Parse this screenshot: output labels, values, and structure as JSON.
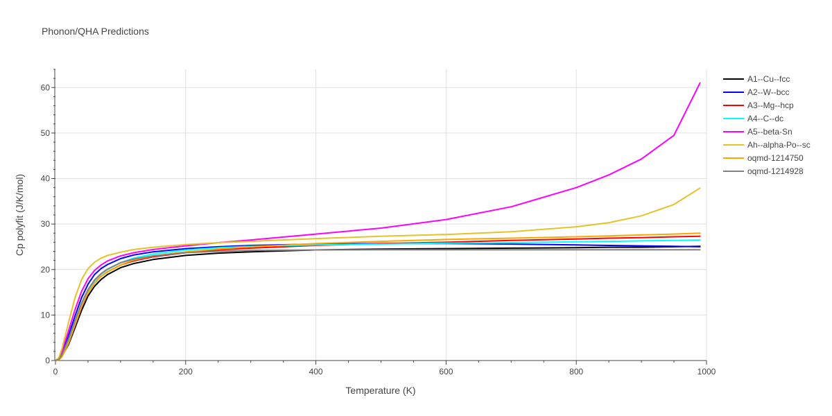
{
  "chart_data": {
    "type": "line",
    "title": "Phonon/QHA Predictions",
    "xlabel": "Temperature (K)",
    "ylabel": "Cp polyfit (J/K/mol)",
    "xlim": [
      0,
      1000
    ],
    "ylim": [
      0,
      64
    ],
    "xticks": [
      0,
      200,
      400,
      600,
      800,
      1000
    ],
    "yticks": [
      0,
      10,
      20,
      30,
      40,
      50,
      60
    ],
    "grid": true,
    "legend_position": "right",
    "x": [
      0,
      5,
      10,
      20,
      30,
      40,
      50,
      60,
      70,
      80,
      100,
      120,
      150,
      200,
      250,
      300,
      400,
      500,
      600,
      700,
      800,
      850,
      900,
      950,
      990
    ],
    "series": [
      {
        "name": "A1--Cu--fcc",
        "color": "#000000",
        "values": [
          0,
          0.2,
          1.0,
          3.5,
          7.2,
          11.0,
          14.2,
          16.3,
          17.8,
          18.9,
          20.4,
          21.3,
          22.2,
          23.1,
          23.6,
          23.9,
          24.3,
          24.5,
          24.6,
          24.7,
          24.8,
          24.9,
          24.9,
          25.0,
          25.1
        ]
      },
      {
        "name": "A2--W--bcc",
        "color": "#0000ff",
        "values": [
          0,
          0.4,
          1.6,
          5.5,
          9.8,
          13.8,
          16.8,
          18.9,
          20.2,
          21.1,
          22.4,
          23.2,
          23.9,
          24.6,
          25.0,
          25.3,
          25.6,
          25.7,
          25.7,
          25.6,
          25.4,
          25.3,
          25.2,
          25.1,
          25.0
        ]
      },
      {
        "name": "A3--Mg--hcp",
        "color": "#ff0000",
        "values": [
          0,
          0.2,
          1.1,
          4.0,
          8.0,
          11.8,
          14.9,
          17.0,
          18.5,
          19.5,
          21.0,
          21.9,
          22.8,
          23.7,
          24.3,
          24.7,
          25.3,
          25.7,
          26.0,
          26.4,
          26.7,
          26.9,
          27.0,
          27.2,
          27.3
        ]
      },
      {
        "name": "A4--C--dc",
        "color": "#00ffff",
        "values": [
          0,
          0.2,
          1.2,
          4.4,
          8.5,
          12.3,
          15.4,
          17.5,
          19.0,
          20.0,
          21.5,
          22.5,
          23.4,
          24.3,
          24.8,
          25.1,
          25.4,
          25.6,
          25.8,
          25.9,
          26.1,
          26.2,
          26.3,
          26.4,
          26.5
        ]
      },
      {
        "name": "A5--beta-Sn",
        "color": "#ff00ff",
        "values": [
          0,
          0.5,
          2.0,
          6.5,
          11.2,
          15.2,
          18.0,
          19.8,
          21.0,
          21.9,
          23.0,
          23.7,
          24.4,
          25.2,
          25.9,
          26.5,
          27.8,
          29.1,
          31.0,
          33.8,
          38.0,
          40.8,
          44.3,
          49.5,
          61.0
        ]
      },
      {
        "name": "Ah--alpha-Po--sc",
        "color": "#e6c229",
        "values": [
          0,
          0.6,
          2.6,
          8.3,
          13.8,
          17.8,
          20.2,
          21.6,
          22.5,
          23.1,
          23.8,
          24.4,
          24.9,
          25.5,
          25.9,
          26.2,
          26.8,
          27.3,
          27.7,
          28.3,
          29.4,
          30.3,
          31.8,
          34.3,
          37.9
        ]
      },
      {
        "name": "oqmd-1214750",
        "color": "#ffa500",
        "values": [
          0,
          0.1,
          0.8,
          3.8,
          7.8,
          11.8,
          14.9,
          17.0,
          18.5,
          19.5,
          21.0,
          22.1,
          23.0,
          23.9,
          24.5,
          25.0,
          25.7,
          26.2,
          26.6,
          26.9,
          27.2,
          27.4,
          27.6,
          27.8,
          28.0
        ]
      },
      {
        "name": "oqmd-1214928",
        "color": "#808080",
        "values": [
          0,
          0.2,
          1.3,
          4.7,
          8.8,
          12.6,
          15.6,
          17.7,
          19.1,
          20.1,
          21.5,
          22.3,
          23.0,
          23.7,
          24.0,
          24.2,
          24.3,
          24.35,
          24.35,
          24.35,
          24.35,
          24.35,
          24.35,
          24.35,
          24.35
        ]
      }
    ]
  }
}
